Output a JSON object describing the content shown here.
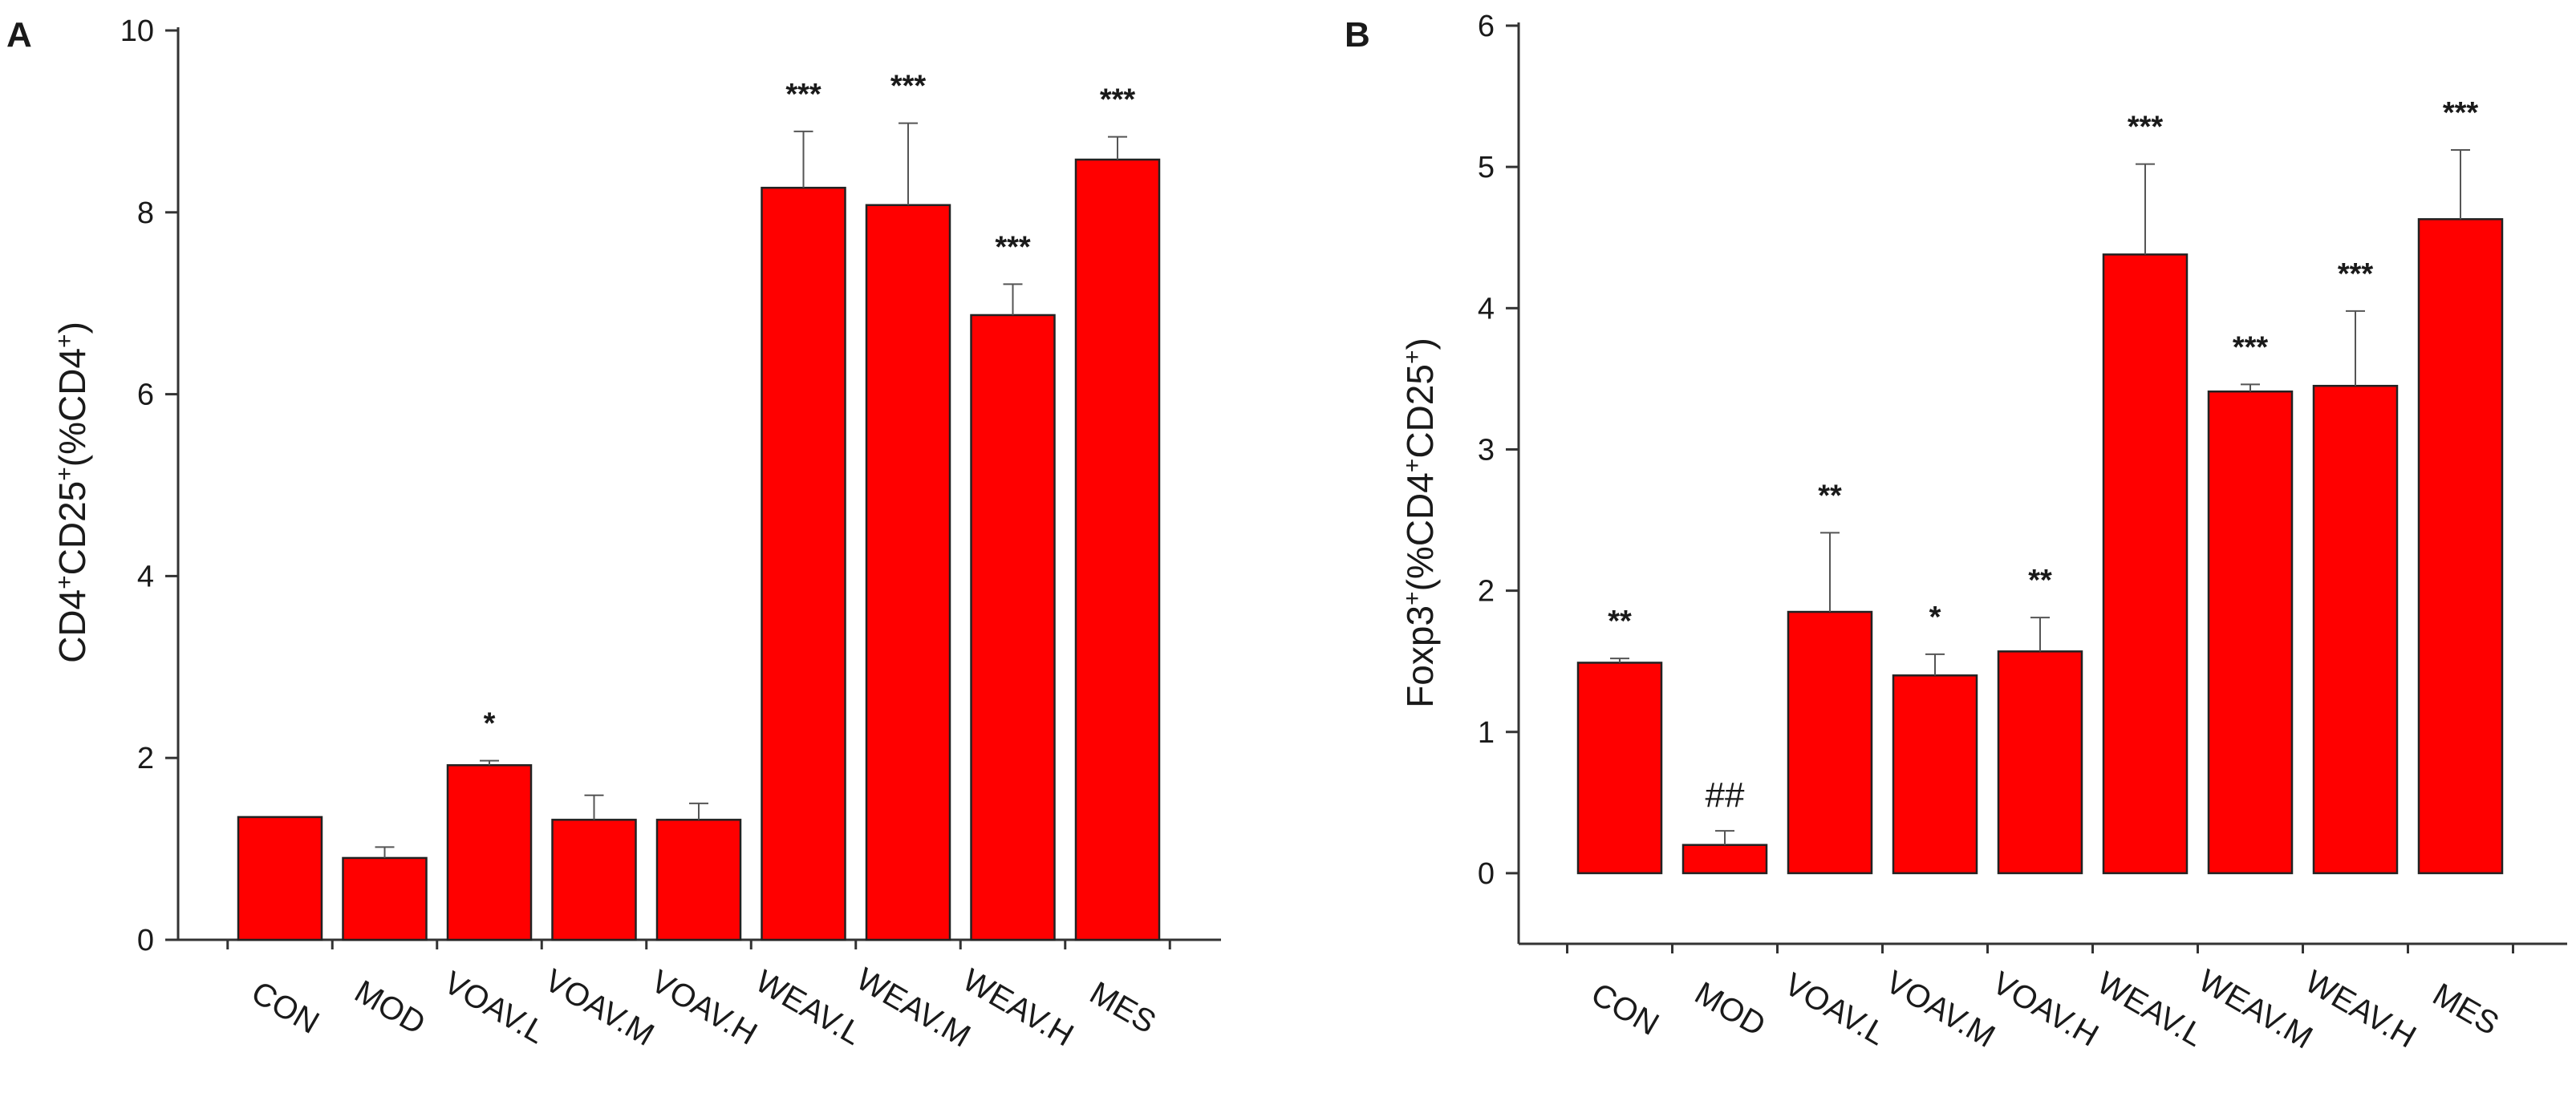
{
  "chart_data": [
    {
      "type": "bar",
      "panel": "A",
      "ylabel_main": "CD4",
      "ylabel_sup1": "+",
      "ylabel_mid": "CD25",
      "ylabel_sup2": "+",
      "ylabel_mid2": "(%CD4",
      "ylabel_sup3": "+",
      "ylabel_end": ")",
      "ylim": [
        0,
        10
      ],
      "yticks": [
        0,
        2,
        4,
        6,
        8,
        10
      ],
      "categories": [
        "CON",
        "MOD",
        "VOAV.L",
        "VOAV.M",
        "VOAV.H",
        "WEAV.L",
        "WEAV.M",
        "WEAV.H",
        "MES"
      ],
      "values": [
        1.35,
        0.9,
        1.92,
        1.32,
        1.32,
        8.27,
        8.08,
        6.87,
        8.58
      ],
      "errors": [
        0.0,
        0.12,
        0.05,
        0.27,
        0.18,
        0.62,
        0.9,
        0.34,
        0.25
      ],
      "significance": [
        "",
        "",
        "*",
        "",
        "",
        "***",
        "***",
        "***",
        "***"
      ],
      "bar_color": "#ff0000"
    },
    {
      "type": "bar",
      "panel": "B",
      "ylabel_main": "Foxp3",
      "ylabel_sup1": "+",
      "ylabel_mid": "(%CD4",
      "ylabel_sup2": "+",
      "ylabel_mid2": "CD25",
      "ylabel_sup3": "+",
      "ylabel_end": ")",
      "ylim": [
        -0.5,
        6
      ],
      "yticks": [
        0,
        1,
        2,
        3,
        4,
        5,
        6
      ],
      "categories": [
        "CON",
        "MOD",
        "VOAV.L",
        "VOAV.M",
        "VOAV.H",
        "WEAV.L",
        "WEAV.M",
        "WEAV.H",
        "MES"
      ],
      "values": [
        1.49,
        0.2,
        1.85,
        1.4,
        1.57,
        4.38,
        3.41,
        3.45,
        4.63
      ],
      "errors": [
        0.03,
        0.1,
        0.56,
        0.15,
        0.24,
        0.64,
        0.05,
        0.53,
        0.49
      ],
      "significance": [
        "**",
        "##",
        "**",
        "*",
        "**",
        "***",
        "***",
        "***",
        "***"
      ],
      "bar_color": "#ff0000"
    }
  ]
}
